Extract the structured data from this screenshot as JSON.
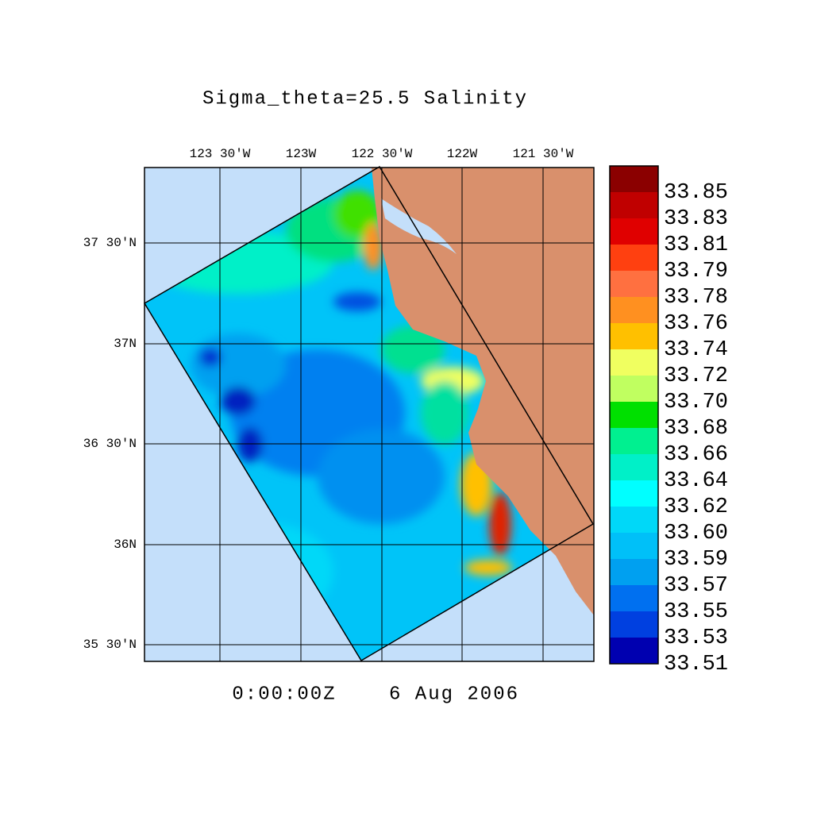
{
  "title": "Sigma_theta=25.5 Salinity",
  "time": "0:00:00Z",
  "date": "6 Aug 2006",
  "lon_ticks": [
    "123 30'W",
    "123W",
    "122 30'W",
    "122W",
    "121 30'W"
  ],
  "lat_ticks": [
    "37 30'N",
    "37N",
    "36 30'N",
    "36N",
    "35 30'N"
  ],
  "colorbar": {
    "labels": [
      "33.85",
      "33.83",
      "33.81",
      "33.79",
      "33.78",
      "33.76",
      "33.74",
      "33.72",
      "33.70",
      "33.68",
      "33.66",
      "33.64",
      "33.62",
      "33.60",
      "33.59",
      "33.57",
      "33.55",
      "33.53",
      "33.51"
    ],
    "colors": [
      "#8b0000",
      "#c00000",
      "#e00000",
      "#ff4010",
      "#ff7040",
      "#ff9020",
      "#ffc000",
      "#f0ff60",
      "#c0ff60",
      "#00e000",
      "#00f090",
      "#00f0c8",
      "#00ffff",
      "#00d8f8",
      "#00c0f8",
      "#00a0f0",
      "#0070f0",
      "#0040e0",
      "#0000b0"
    ]
  }
}
